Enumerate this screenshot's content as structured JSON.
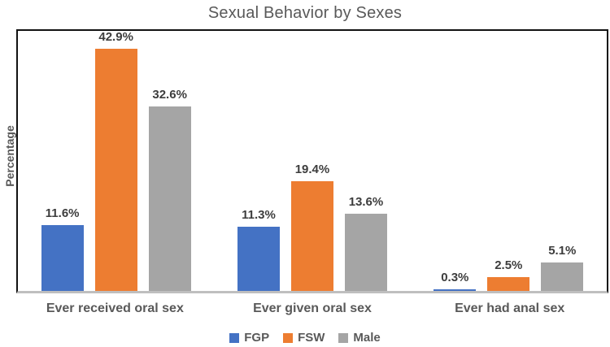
{
  "chart_data": {
    "type": "bar",
    "title": "Sexual Behavior by Sexes",
    "xlabel": "",
    "ylabel": "Percentage",
    "categories": [
      "Ever received oral sex",
      "Ever given oral sex",
      "Ever had anal sex"
    ],
    "series": [
      {
        "name": "FGP",
        "color": "#4472C4",
        "values": [
          11.6,
          11.3,
          0.3
        ]
      },
      {
        "name": "FSW",
        "color": "#ED7D31",
        "values": [
          42.9,
          19.4,
          2.5
        ]
      },
      {
        "name": "Male",
        "color": "#A5A5A5",
        "values": [
          32.6,
          13.6,
          5.1
        ]
      }
    ],
    "data_labels": [
      "11.6%",
      "42.9%",
      "32.6%",
      "11.3%",
      "19.4%",
      "13.6%",
      "0.3%",
      "2.5%",
      "5.1%"
    ],
    "label_format": "{value}%",
    "ylim": [
      0,
      46
    ],
    "grid": false,
    "legend_position": "bottom"
  }
}
